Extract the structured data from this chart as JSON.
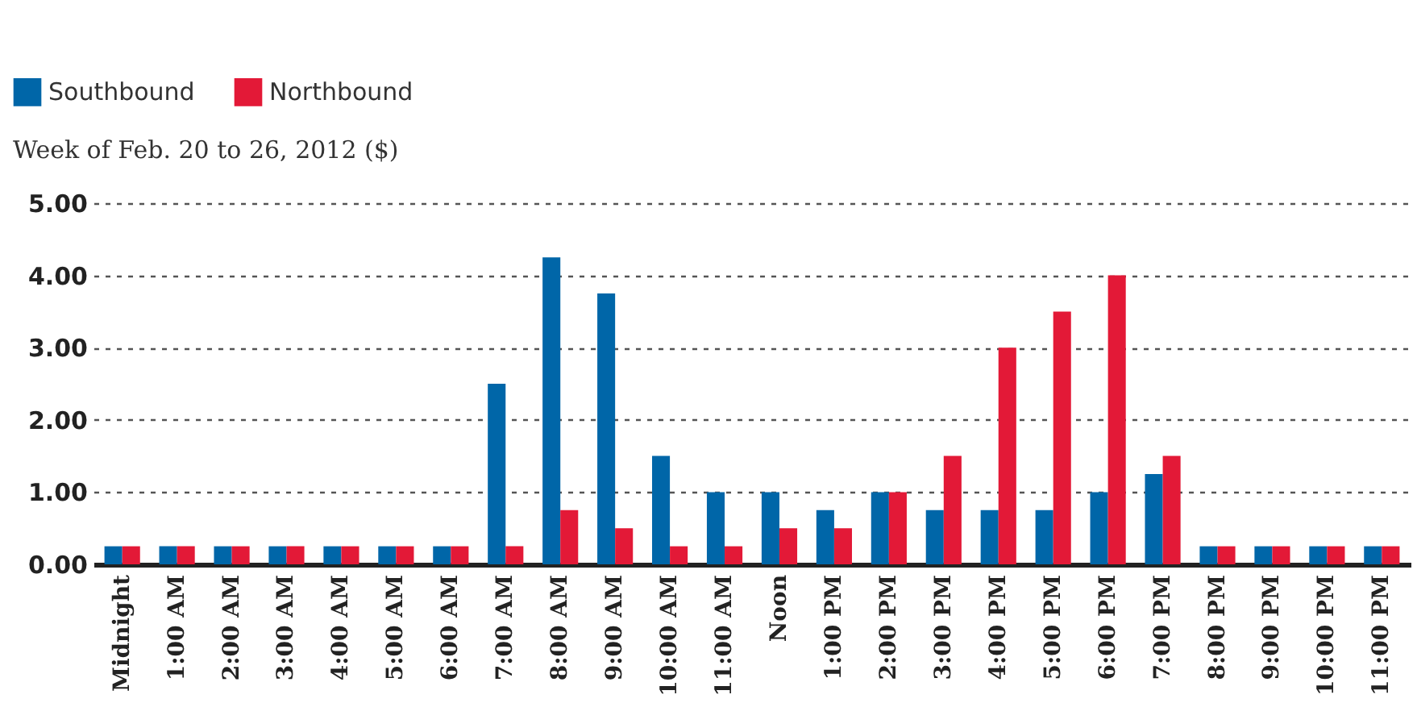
{
  "chart_data": {
    "type": "bar",
    "title": "Week of Feb. 20 to 26, 2012 ($)",
    "categories": [
      "Midnight",
      "1:00 AM",
      "2:00 AM",
      "3:00 AM",
      "4:00 AM",
      "5:00 AM",
      "6:00 AM",
      "7:00 AM",
      "8:00 AM",
      "9:00 AM",
      "10:00 AM",
      "11:00 AM",
      "Noon",
      "1:00 PM",
      "2:00 PM",
      "3:00 PM",
      "4:00 PM",
      "5:00 PM",
      "6:00 PM",
      "7:00 PM",
      "8:00 PM",
      "9:00 PM",
      "10:00 PM",
      "11:00 PM"
    ],
    "series": [
      {
        "name": "Southbound",
        "color": "#0066a8",
        "values": [
          0.25,
          0.25,
          0.25,
          0.25,
          0.25,
          0.25,
          0.25,
          2.5,
          4.25,
          3.75,
          1.5,
          1,
          1,
          0.75,
          1,
          0.75,
          0.75,
          0.75,
          1,
          1.25,
          0.25,
          0.25,
          0.25,
          0.25
        ]
      },
      {
        "name": "Northbound",
        "color": "#e31937",
        "values": [
          0.25,
          0.25,
          0.25,
          0.25,
          0.25,
          0.25,
          0.25,
          0.25,
          0.75,
          0.5,
          0.25,
          0.25,
          0.5,
          0.5,
          1,
          1.5,
          3,
          3.5,
          4,
          1.5,
          0.25,
          0.25,
          0.25,
          0.25
        ]
      }
    ],
    "ylim": [
      0,
      5
    ],
    "yticks": [
      {
        "value": 0,
        "label": "0.00"
      },
      {
        "value": 1,
        "label": "1.00"
      },
      {
        "value": 2,
        "label": "2.00"
      },
      {
        "value": 3,
        "label": "3.00"
      },
      {
        "value": 4,
        "label": "4.00"
      },
      {
        "value": 5,
        "label": "5.00"
      }
    ],
    "grid": "y",
    "legend": "top left"
  }
}
